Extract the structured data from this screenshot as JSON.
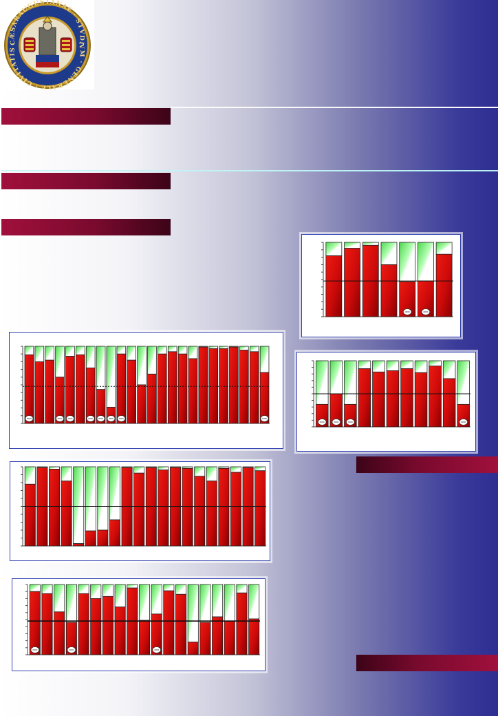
{
  "seal": {
    "ring_text": "CÆSARAUGUSTANAE · STVDIVM · GENERALE · CIVITATIS",
    "colors": {
      "ring": "#c89a2a",
      "inner": "#1e3a8a",
      "field": "#e8e0c8"
    }
  },
  "colors": {
    "bar_fill": "#cc0a0a",
    "bar_fill_dark": "#8a0000",
    "bar_top": "#88f088",
    "band": "#7a0a2e",
    "panel_border": "#3040b0"
  },
  "chart_data": [
    {
      "type": "bar",
      "stacked": true,
      "values": [
        0.89,
        0.8,
        0.82,
        0.6,
        0.87,
        0.89,
        0.72,
        0.44,
        0.21,
        0.9,
        0.82,
        0.5,
        0.64,
        0.9,
        0.93,
        0.9,
        0.84,
        0.99,
        0.97,
        0.97,
        0.99,
        0.95,
        0.93,
        0.66
      ],
      "ylim": [
        0,
        1
      ],
      "reference_line": 0.48,
      "markers_at": [
        0,
        3,
        4,
        6,
        7,
        8,
        9,
        23
      ],
      "grid": false
    },
    {
      "type": "bar",
      "stacked": true,
      "values": [
        0.82,
        0.92,
        0.96,
        0.7,
        0.47,
        0.48,
        0.84
      ],
      "ylim": [
        0,
        1
      ],
      "reference_line": 0.48,
      "markers_at": [
        4,
        5
      ],
      "grid": false
    },
    {
      "type": "bar",
      "stacked": true,
      "values": [
        0.34,
        0.5,
        0.34,
        0.88,
        0.83,
        0.85,
        0.88,
        0.82,
        0.92,
        0.73,
        0.34
      ],
      "ylim": [
        0,
        1
      ],
      "reference_line": 0.5,
      "markers_at": [
        0,
        1,
        2,
        10
      ],
      "grid": false
    },
    {
      "type": "bar",
      "stacked": true,
      "values": [
        0.78,
        0.99,
        0.97,
        0.82,
        0.03,
        0.19,
        0.2,
        0.33,
        0.99,
        0.92,
        0.99,
        0.96,
        0.99,
        0.98,
        0.88,
        0.82,
        0.98,
        0.93,
        0.99,
        0.95
      ],
      "ylim": [
        0,
        1
      ],
      "reference_line": 0.5,
      "markers_at": [],
      "grid": false
    },
    {
      "type": "bar",
      "stacked": true,
      "values": [
        0.9,
        0.87,
        0.61,
        0.46,
        0.87,
        0.8,
        0.83,
        0.68,
        0.95,
        0.49,
        0.58,
        0.91,
        0.86,
        0.18,
        0.46,
        0.54,
        0.48,
        0.88,
        0.51
      ],
      "ylim": [
        0,
        1
      ],
      "reference_line": 0.48,
      "markers_at": [
        0,
        3,
        10
      ],
      "grid": false
    }
  ]
}
